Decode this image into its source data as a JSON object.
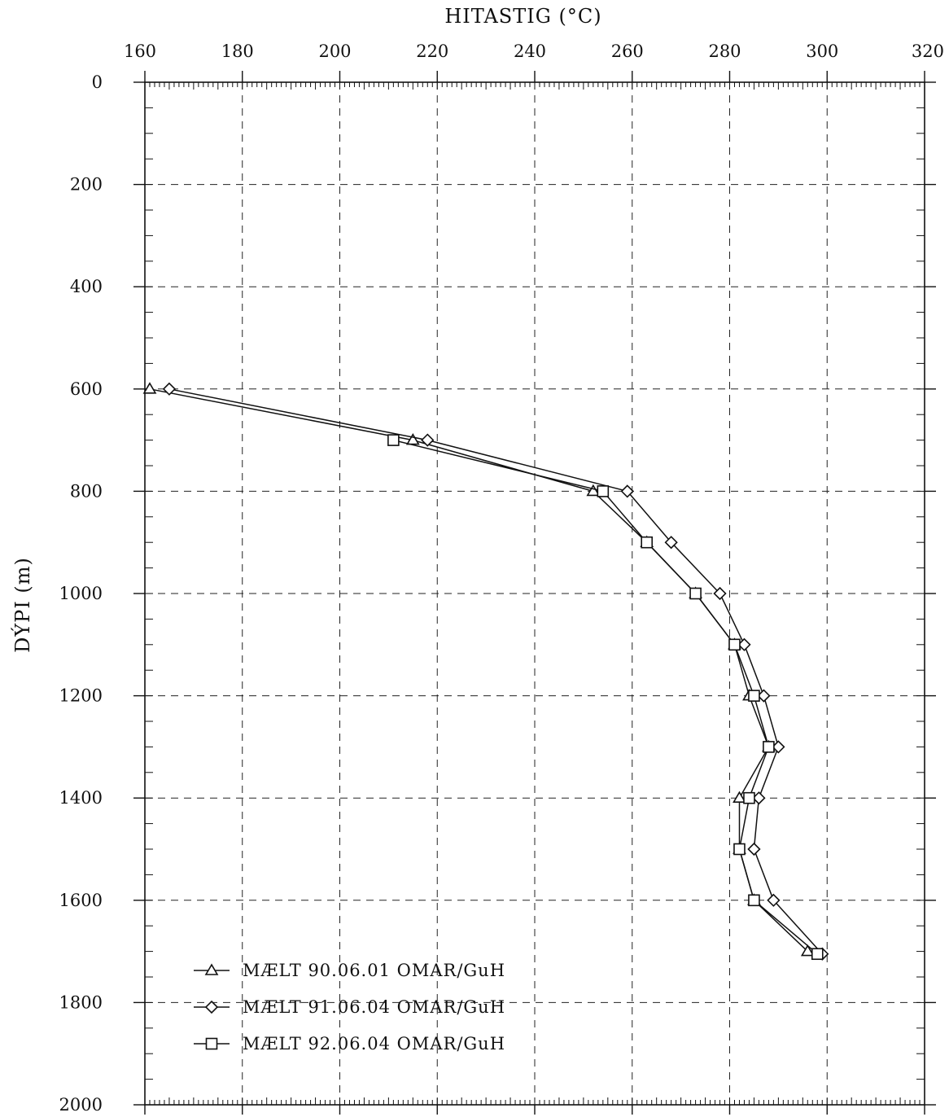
{
  "chart_data": {
    "type": "line",
    "xlabel": "HITASTIG (°C)",
    "ylabel": "DÝPI (m)",
    "x_axis_position": "top",
    "y_axis_inverted": true,
    "xlim": [
      160,
      320
    ],
    "ylim": [
      0,
      2000
    ],
    "xticks": [
      160,
      180,
      200,
      220,
      240,
      260,
      280,
      300,
      320
    ],
    "yticks": [
      0,
      200,
      400,
      600,
      800,
      1000,
      1200,
      1400,
      1600,
      1800,
      2000
    ],
    "grid": true,
    "grid_style": "dashed",
    "legend_position": "bottom-left",
    "series": [
      {
        "name": "MÆLT  90.06.01  OMAR/GuH",
        "marker": "triangle",
        "points": [
          {
            "x": 161,
            "y": 600
          },
          {
            "x": 215,
            "y": 700
          },
          {
            "x": 252,
            "y": 800
          },
          {
            "x": 263,
            "y": 900
          },
          {
            "x": 273,
            "y": 1000
          },
          {
            "x": 281,
            "y": 1100
          },
          {
            "x": 284,
            "y": 1200
          },
          {
            "x": 288,
            "y": 1300
          },
          {
            "x": 282,
            "y": 1400
          },
          {
            "x": 282,
            "y": 1500
          },
          {
            "x": 285,
            "y": 1600
          },
          {
            "x": 296,
            "y": 1700
          }
        ]
      },
      {
        "name": "MÆLT  91.06.04  OMAR/GuH",
        "marker": "diamond",
        "points": [
          {
            "x": 165,
            "y": 600
          },
          {
            "x": 218,
            "y": 700
          },
          {
            "x": 259,
            "y": 800
          },
          {
            "x": 268,
            "y": 900
          },
          {
            "x": 278,
            "y": 1000
          },
          {
            "x": 283,
            "y": 1100
          },
          {
            "x": 287,
            "y": 1200
          },
          {
            "x": 290,
            "y": 1300
          },
          {
            "x": 286,
            "y": 1400
          },
          {
            "x": 285,
            "y": 1500
          },
          {
            "x": 289,
            "y": 1600
          },
          {
            "x": 299,
            "y": 1705
          }
        ]
      },
      {
        "name": "MÆLT  92.06.04  OMAR/GuH",
        "marker": "square",
        "points": [
          {
            "x": 211,
            "y": 700
          },
          {
            "x": 254,
            "y": 800
          },
          {
            "x": 263,
            "y": 900
          },
          {
            "x": 273,
            "y": 1000
          },
          {
            "x": 281,
            "y": 1100
          },
          {
            "x": 285,
            "y": 1200
          },
          {
            "x": 288,
            "y": 1300
          },
          {
            "x": 284,
            "y": 1400
          },
          {
            "x": 282,
            "y": 1500
          },
          {
            "x": 285,
            "y": 1600
          },
          {
            "x": 298,
            "y": 1705
          }
        ]
      }
    ]
  },
  "style": {
    "ink_color": "#111111",
    "grid_color": "#222222",
    "background": "#ffffff"
  }
}
